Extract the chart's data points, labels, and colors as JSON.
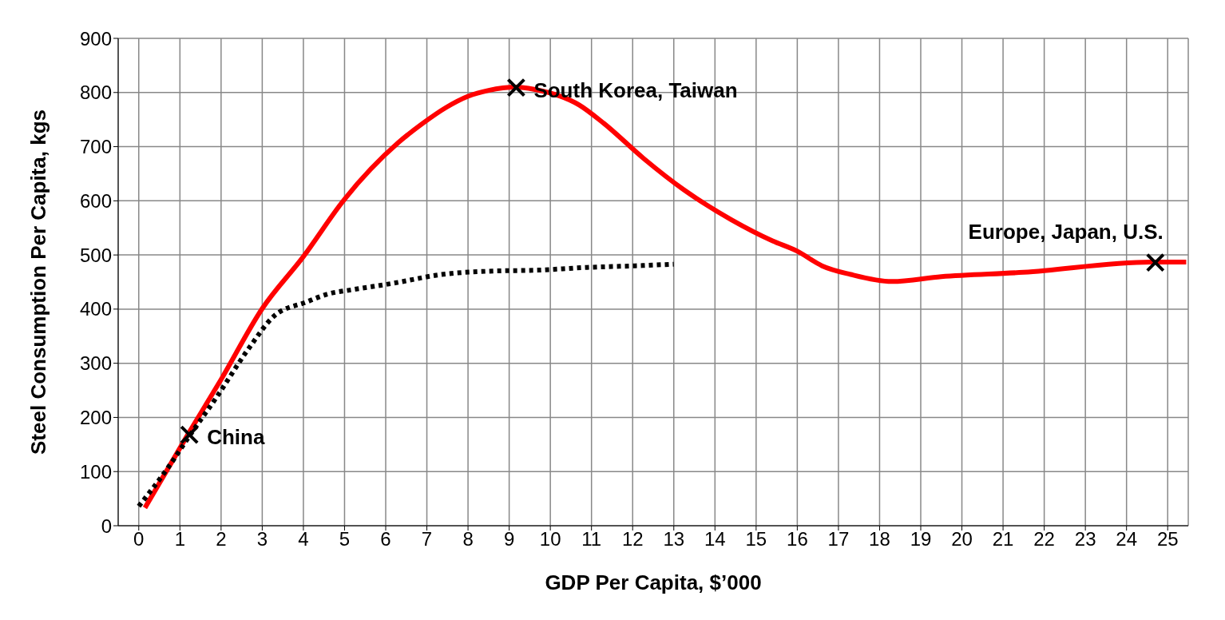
{
  "chart_data": {
    "type": "line",
    "xlabel": "GDP Per Capita, $’000",
    "ylabel": "Steel Consumption Per Capita, kgs",
    "xlim": [
      -0.5,
      25.5
    ],
    "xticks": [
      0,
      1,
      2,
      3,
      4,
      5,
      6,
      7,
      8,
      9,
      10,
      11,
      12,
      13,
      14,
      15,
      16,
      17,
      18,
      19,
      20,
      21,
      22,
      23,
      24,
      25
    ],
    "ylim": [
      0,
      900
    ],
    "yticks": [
      0,
      100,
      200,
      300,
      400,
      500,
      600,
      700,
      800,
      900
    ],
    "grid": true,
    "series": [
      {
        "color": "#ff0000",
        "line_style": "solid",
        "marker": "none",
        "x": [
          0.15,
          1.19,
          2.0,
          3.0,
          4.0,
          5.0,
          6.3,
          6.9,
          7.46,
          8.0,
          8.5,
          9.17,
          9.6,
          10.7,
          11.3,
          12.27,
          13.25,
          14.4,
          15.4,
          16.0,
          16.6,
          17.3,
          18.3,
          19.5,
          21.5,
          24.6,
          25.45
        ],
        "values": [
          33,
          168,
          270,
          401,
          497,
          603,
          707,
          743,
          772,
          793,
          804,
          810,
          806,
          777,
          743,
          678,
          620,
          565,
          526,
          507,
          480,
          464,
          451,
          460,
          468,
          487,
          487
        ]
      },
      {
        "color": "#000000",
        "line_style": "dotted",
        "marker": "none",
        "x": [
          0.0,
          0.7,
          1.25,
          1.87,
          2.66,
          3.3,
          4.07,
          4.6,
          5.2,
          6.2,
          7.36,
          8.5,
          9.7,
          10.9,
          12.07,
          13.0
        ],
        "values": [
          36,
          106,
          168,
          235,
          326,
          388,
          413,
          428,
          436,
          448,
          464,
          470,
          472,
          477,
          480,
          483
        ]
      },
      {
        "type": "scatter",
        "color": "#000000",
        "marker": "cross",
        "x": [
          1.23,
          9.17,
          24.7
        ],
        "values": [
          168,
          809,
          486
        ]
      }
    ],
    "annotations": [
      {
        "text": "China",
        "x": 1.23,
        "y": 168
      },
      {
        "text": "South Korea, Taiwan",
        "x": 9.17,
        "y": 809
      },
      {
        "text": "Europe, Japan, U.S.",
        "x": 24.7,
        "y": 486
      }
    ]
  }
}
